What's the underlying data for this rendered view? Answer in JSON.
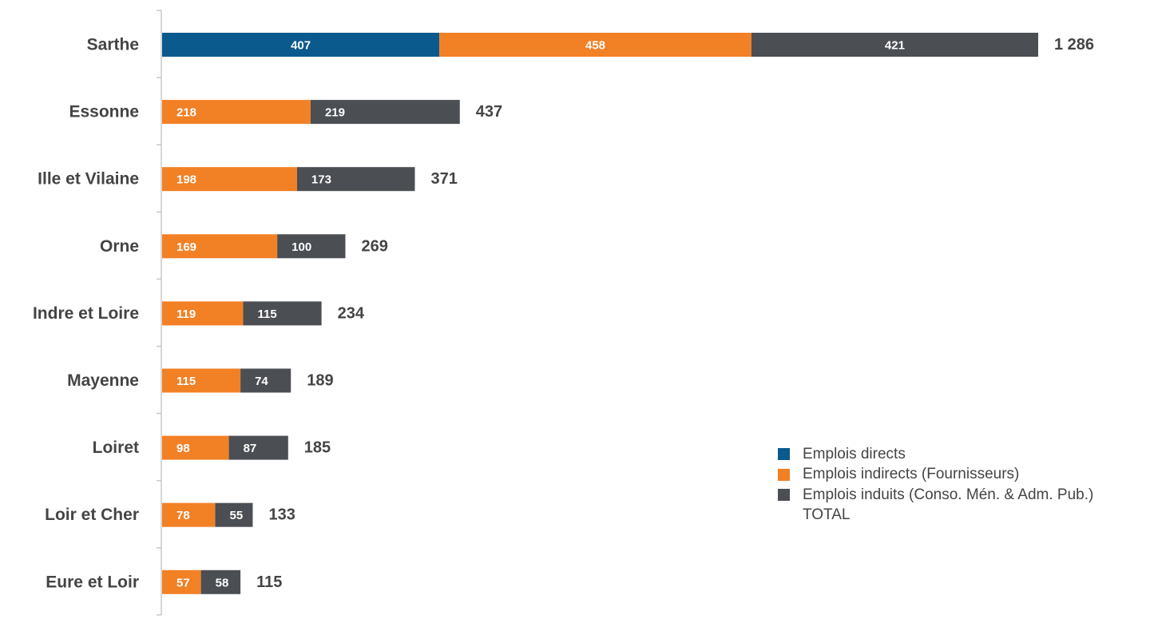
{
  "chart_data": {
    "type": "bar",
    "orientation": "horizontal",
    "stacked": true,
    "categories": [
      "Sarthe",
      "Essonne",
      "Ille et Vilaine",
      "Orne",
      "Indre et Loire",
      "Mayenne",
      "Loiret",
      "Loir et Cher",
      "Eure et Loir"
    ],
    "series": [
      {
        "name": "Emplois directs",
        "color": "#0B5A8E",
        "values": [
          407,
          0,
          0,
          0,
          0,
          0,
          0,
          0,
          0
        ]
      },
      {
        "name": "Emplois indirects (Fournisseurs)",
        "color": "#F28025",
        "values": [
          458,
          218,
          198,
          169,
          119,
          115,
          98,
          78,
          57
        ]
      },
      {
        "name": "Emplois induits (Conso. Mén. & Adm. Pub.)",
        "color": "#4B4E53",
        "values": [
          421,
          219,
          173,
          100,
          115,
          74,
          87,
          55,
          58
        ]
      }
    ],
    "total_legend_label": "TOTAL",
    "totals": [
      "1 286",
      "437",
      "371",
      "269",
      "234",
      "189",
      "185",
      "133",
      "115"
    ],
    "xlim": [
      0,
      1286
    ],
    "grid": false,
    "legend_position": "bottom-right"
  }
}
